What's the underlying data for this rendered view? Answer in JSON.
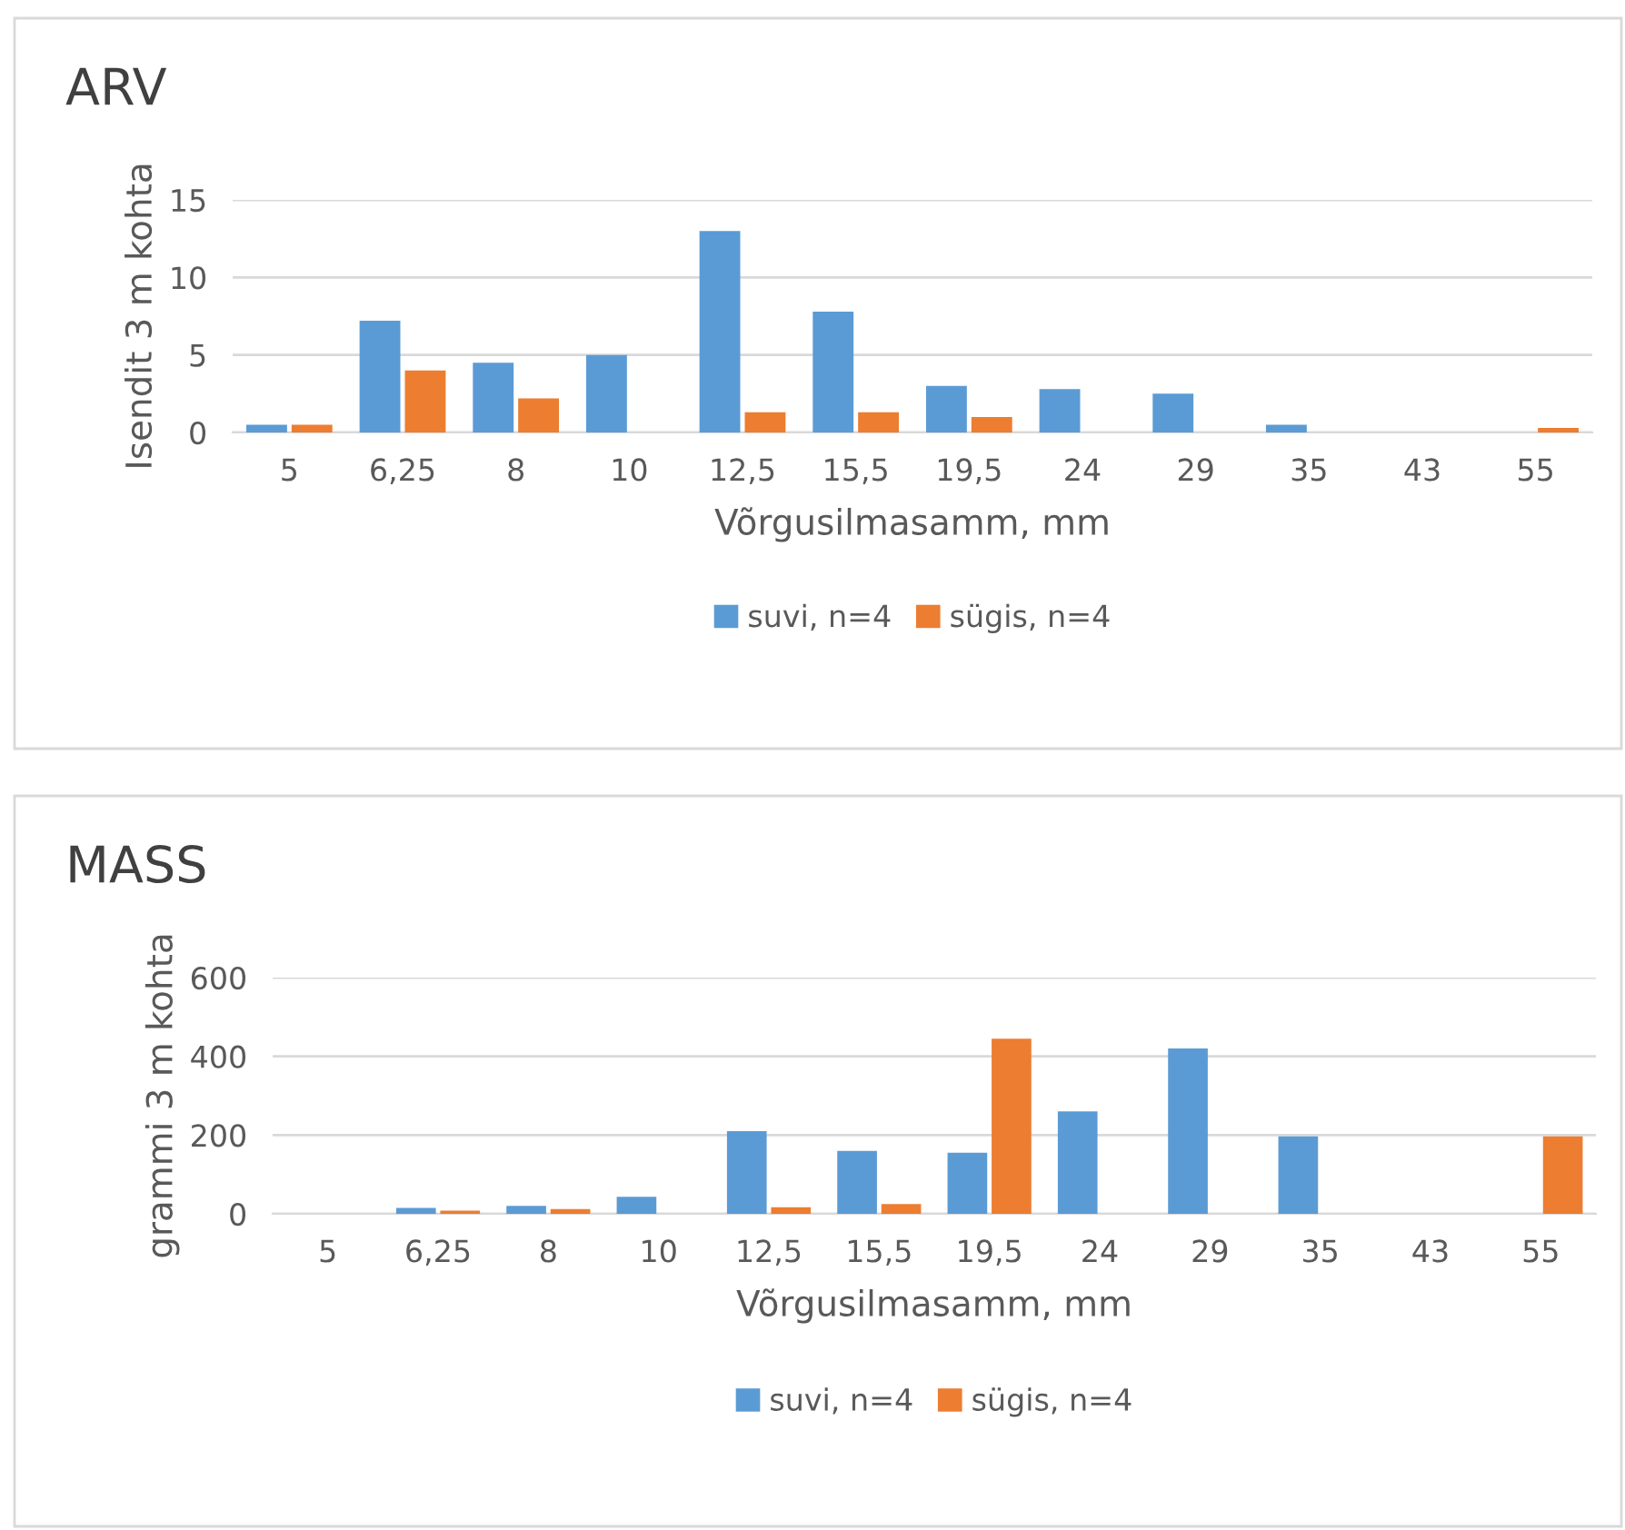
{
  "chart_data": [
    {
      "type": "bar",
      "title": "ARV",
      "xlabel": "Võrgusilmasamm, mm",
      "ylabel": "Isendit 3 m kohta",
      "categories": [
        "5",
        "6,25",
        "8",
        "10",
        "12,5",
        "15,5",
        "19,5",
        "24",
        "29",
        "35",
        "43",
        "55"
      ],
      "series": [
        {
          "name": "suvi, n=4",
          "color": "#5b9bd5",
          "values": [
            0.5,
            7.2,
            4.5,
            5,
            13,
            7.8,
            3,
            2.8,
            2.5,
            0.5,
            0,
            0
          ]
        },
        {
          "name": "sügis, n=4",
          "color": "#ed7d31",
          "values": [
            0.5,
            4,
            2.2,
            0,
            1.3,
            1.3,
            1,
            0,
            0,
            0,
            0,
            0.3
          ]
        }
      ],
      "ylim": [
        0,
        15
      ],
      "yticks": [
        0,
        5,
        10,
        15
      ],
      "grid": "y",
      "legend": "bottom"
    },
    {
      "type": "bar",
      "title": "MASS",
      "xlabel": "Võrgusilmasamm, mm",
      "ylabel": "grammi 3 m kohta",
      "categories": [
        "5",
        "6,25",
        "8",
        "10",
        "12,5",
        "15,5",
        "19,5",
        "24",
        "29",
        "35",
        "43",
        "55"
      ],
      "series": [
        {
          "name": "suvi, n=4",
          "color": "#5b9bd5",
          "values": [
            0,
            15,
            20,
            43,
            210,
            160,
            155,
            260,
            420,
            197,
            0,
            0
          ]
        },
        {
          "name": "sügis, n=4",
          "color": "#ed7d31",
          "values": [
            0,
            8,
            12,
            0,
            17,
            25,
            445,
            0,
            0,
            0,
            0,
            197
          ]
        }
      ],
      "ylim": [
        0,
        600
      ],
      "yticks": [
        0,
        200,
        400,
        600
      ],
      "grid": "y",
      "legend": "bottom"
    }
  ]
}
